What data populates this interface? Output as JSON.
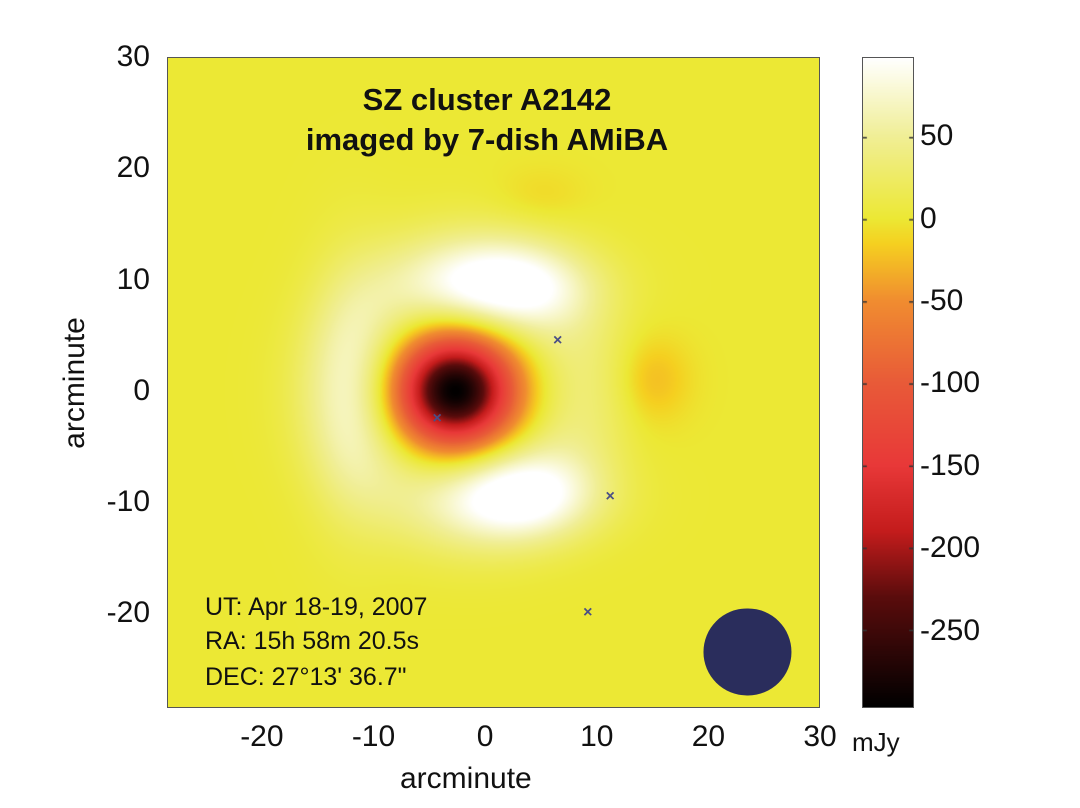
{
  "chart_data": {
    "type": "heatmap",
    "title_lines": [
      "SZ cluster A2142",
      "imaged by 7-dish AMiBA"
    ],
    "xlabel": "arcminute",
    "ylabel": "arcminute",
    "xlim": [
      -28.5,
      30
    ],
    "ylim": [
      -28.5,
      30
    ],
    "xticks": [
      -20,
      -10,
      0,
      10,
      20,
      30
    ],
    "yticks": [
      -20,
      -10,
      0,
      10,
      20,
      30
    ],
    "colorbar": {
      "label": "mJy",
      "range": [
        -297,
        98
      ],
      "ticks": [
        50,
        0,
        -50,
        -100,
        -150,
        -200,
        -250
      ],
      "colormap": [
        {
          "v": -297,
          "c": "#000000"
        },
        {
          "v": -230,
          "c": "#5a0c0c"
        },
        {
          "v": -190,
          "c": "#c41c1c"
        },
        {
          "v": -150,
          "c": "#e83838"
        },
        {
          "v": -100,
          "c": "#e85a38"
        },
        {
          "v": -50,
          "c": "#f08c30"
        },
        {
          "v": -15,
          "c": "#f5d020"
        },
        {
          "v": 0,
          "c": "#ece834"
        },
        {
          "v": 50,
          "c": "#f0ee95"
        },
        {
          "v": 98,
          "c": "#ffffff"
        }
      ]
    },
    "sources": [
      {
        "x": -2.7,
        "y": 0,
        "amp": -297,
        "sx": 3.6,
        "sy": 3.4
      },
      {
        "x": 1.5,
        "y": 9.5,
        "amp": 95,
        "sx": 5.5,
        "sy": 2.8
      },
      {
        "x": 3,
        "y": -9.5,
        "amp": 95,
        "sx": 5,
        "sy": 2.8
      },
      {
        "x": -12,
        "y": 0,
        "amp": 40,
        "sx": 2.8,
        "sy": 8
      },
      {
        "x": 15,
        "y": 1,
        "amp": -25,
        "sx": 2.3,
        "sy": 2.6
      },
      {
        "x": 5,
        "y": 17.5,
        "amp": -10,
        "sx": 2.8,
        "sy": 1.8
      }
    ],
    "ring": {
      "x": -2,
      "y": 0,
      "radius": 10.5,
      "width": 3.5,
      "amp": 35
    },
    "point_sources": [
      {
        "x": 6.5,
        "y": 4.5
      },
      {
        "x": -4.3,
        "y": -2.5
      },
      {
        "x": 11.2,
        "y": -9.5
      },
      {
        "x": 9.2,
        "y": -20
      }
    ],
    "beam": {
      "x": 23.5,
      "y": -23.5,
      "radius": 3.9
    },
    "annotations": [
      "UT: Apr 18-19, 2007",
      "RA: 15h 58m 20.5s",
      "DEC: 27°13' 36.7\""
    ]
  }
}
